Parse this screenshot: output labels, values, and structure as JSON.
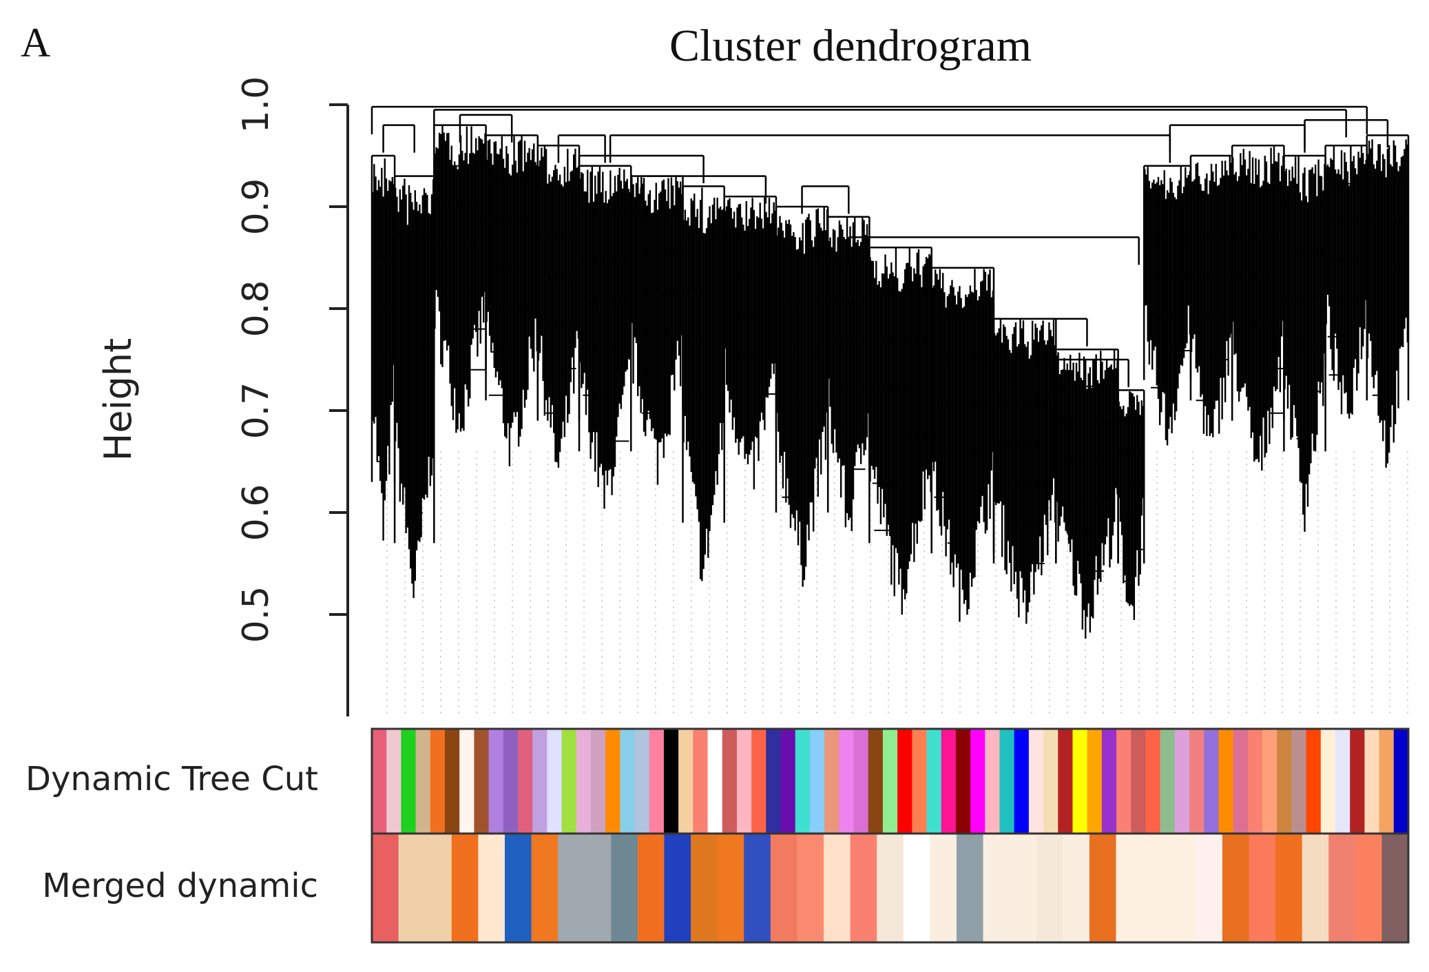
{
  "chart_data": {
    "type": "dendrogram",
    "panel_label": "A",
    "title": "Cluster dendrogram",
    "ylabel": "Height",
    "xlabel": "",
    "ylim": [
      0.4,
      1.0
    ],
    "yticks": [
      0.5,
      0.6,
      0.7,
      0.8,
      0.9,
      1.0
    ],
    "ytick_labels": [
      "0.5",
      "0.6",
      "0.7",
      "0.8",
      "0.9",
      "1.0"
    ],
    "tip_height": 0.41,
    "clusters": [
      {
        "x0": 0.0,
        "x1": 0.022,
        "top": 0.95,
        "min": 0.55
      },
      {
        "x0": 0.022,
        "x1": 0.06,
        "top": 0.93,
        "min": 0.49
      },
      {
        "x0": 0.06,
        "x1": 0.11,
        "top": 0.98,
        "min": 0.66
      },
      {
        "x0": 0.11,
        "x1": 0.16,
        "top": 0.97,
        "min": 0.63
      },
      {
        "x0": 0.16,
        "x1": 0.2,
        "top": 0.96,
        "min": 0.61
      },
      {
        "x0": 0.2,
        "x1": 0.25,
        "top": 0.94,
        "min": 0.58
      },
      {
        "x0": 0.25,
        "x1": 0.3,
        "top": 0.93,
        "min": 0.62
      },
      {
        "x0": 0.3,
        "x1": 0.34,
        "top": 0.92,
        "min": 0.51
      },
      {
        "x0": 0.34,
        "x1": 0.39,
        "top": 0.91,
        "min": 0.6
      },
      {
        "x0": 0.39,
        "x1": 0.44,
        "top": 0.9,
        "min": 0.52
      },
      {
        "x0": 0.44,
        "x1": 0.48,
        "top": 0.89,
        "min": 0.56
      },
      {
        "x0": 0.48,
        "x1": 0.54,
        "top": 0.86,
        "min": 0.49
      },
      {
        "x0": 0.54,
        "x1": 0.6,
        "top": 0.84,
        "min": 0.48
      },
      {
        "x0": 0.6,
        "x1": 0.66,
        "top": 0.79,
        "min": 0.47
      },
      {
        "x0": 0.66,
        "x1": 0.72,
        "top": 0.76,
        "min": 0.47
      },
      {
        "x0": 0.72,
        "x1": 0.745,
        "top": 0.72,
        "min": 0.47
      },
      {
        "x0": 0.745,
        "x1": 0.79,
        "top": 0.94,
        "min": 0.65
      },
      {
        "x0": 0.79,
        "x1": 0.83,
        "top": 0.95,
        "min": 0.63
      },
      {
        "x0": 0.83,
        "x1": 0.88,
        "top": 0.96,
        "min": 0.61
      },
      {
        "x0": 0.88,
        "x1": 0.92,
        "top": 0.95,
        "min": 0.58
      },
      {
        "x0": 0.92,
        "x1": 0.96,
        "top": 0.96,
        "min": 0.66
      },
      {
        "x0": 0.96,
        "x1": 1.0,
        "top": 0.97,
        "min": 0.63
      }
    ],
    "merges": [
      {
        "x0": 0.011,
        "x1": 0.041,
        "h": 0.98
      },
      {
        "x0": 0.085,
        "x1": 0.135,
        "h": 0.99
      },
      {
        "x0": 0.18,
        "x1": 0.225,
        "h": 0.97
      },
      {
        "x0": 0.2,
        "x1": 0.32,
        "h": 0.95
      },
      {
        "x0": 0.26,
        "x1": 0.38,
        "h": 0.93
      },
      {
        "x0": 0.415,
        "x1": 0.46,
        "h": 0.92
      },
      {
        "x0": 0.46,
        "x1": 0.74,
        "h": 0.87
      },
      {
        "x0": 0.56,
        "x1": 0.69,
        "h": 0.79
      },
      {
        "x0": 0.62,
        "x1": 0.73,
        "h": 0.75
      },
      {
        "x0": 0.23,
        "x1": 0.77,
        "h": 0.97
      },
      {
        "x0": 0.77,
        "x1": 0.9,
        "h": 0.98
      },
      {
        "x0": 0.9,
        "x1": 0.98,
        "h": 0.985
      },
      {
        "x0": 0.06,
        "x1": 0.94,
        "h": 0.995
      },
      {
        "x0": 0.0,
        "x1": 0.96,
        "h": 0.998
      }
    ],
    "color_bars": [
      {
        "label": "Dynamic Tree Cut",
        "colors": [
          "#e8607a",
          "#f0c8d0",
          "#1fd01f",
          "#d2b48c",
          "#f07020",
          "#8b4513",
          "#fff5ee",
          "#a0522d",
          "#b080e0",
          "#9060c0",
          "#e06080",
          "#c0a0e0",
          "#e0e0ff",
          "#a0e040",
          "#e8b0d8",
          "#d0a0c0",
          "#ff8c00",
          "#87ceeb",
          "#b0c4de",
          "#ff80a0",
          "#000000",
          "#f4d0a0",
          "#fa8072",
          "#ffffff",
          "#cd5c5c",
          "#ffb6c1",
          "#ff6347",
          "#2f2f9f",
          "#6a0dad",
          "#40e0d0",
          "#87cefa",
          "#e9967a",
          "#ee82ee",
          "#da70d6",
          "#8b4513",
          "#90ee90",
          "#ff0000",
          "#ff7f50",
          "#40e0d0",
          "#ff1493",
          "#8b0000",
          "#ff00ff",
          "#ffb6c1",
          "#20c0c0",
          "#0000ff",
          "#ffe4e1",
          "#f5deb3",
          "#b22222",
          "#ffff00",
          "#ffa500",
          "#9932cc",
          "#fa8072",
          "#cd5c5c",
          "#ff6347",
          "#8fbc8f",
          "#dda0dd",
          "#f08080",
          "#9370db",
          "#ff8c00",
          "#db7093",
          "#fa8072",
          "#ffa07a",
          "#cd853f",
          "#bc8f8f",
          "#ff4500",
          "#ffefd5",
          "#e6e6fa",
          "#b22222",
          "#ffdab9",
          "#f4a460",
          "#0000cd"
        ]
      },
      {
        "label": "Merged dynamic",
        "colors": [
          "#e86060",
          "#f0d0a8",
          "#f0d0a8",
          "#f07020",
          "#ffe8d0",
          "#2060c0",
          "#f07820",
          "#a0a8b0",
          "#a0a8b0",
          "#6e8894",
          "#f07020",
          "#2040c0",
          "#e07820",
          "#f07820",
          "#3050c0",
          "#f27b5f",
          "#fa8a70",
          "#ffe0c8",
          "#fa8070",
          "#f5e8d8",
          "#ffffff",
          "#faeee0",
          "#90a0a8",
          "#faeee0",
          "#faeee0",
          "#f4e8d8",
          "#faeee0",
          "#e87020",
          "#fdf0e0",
          "#fdf0e0",
          "#fdf0e0",
          "#fff0f0",
          "#e87020",
          "#fa7a5a",
          "#f07020",
          "#f5dcc0",
          "#f08070",
          "#fa8060",
          "#806060"
        ]
      }
    ]
  }
}
